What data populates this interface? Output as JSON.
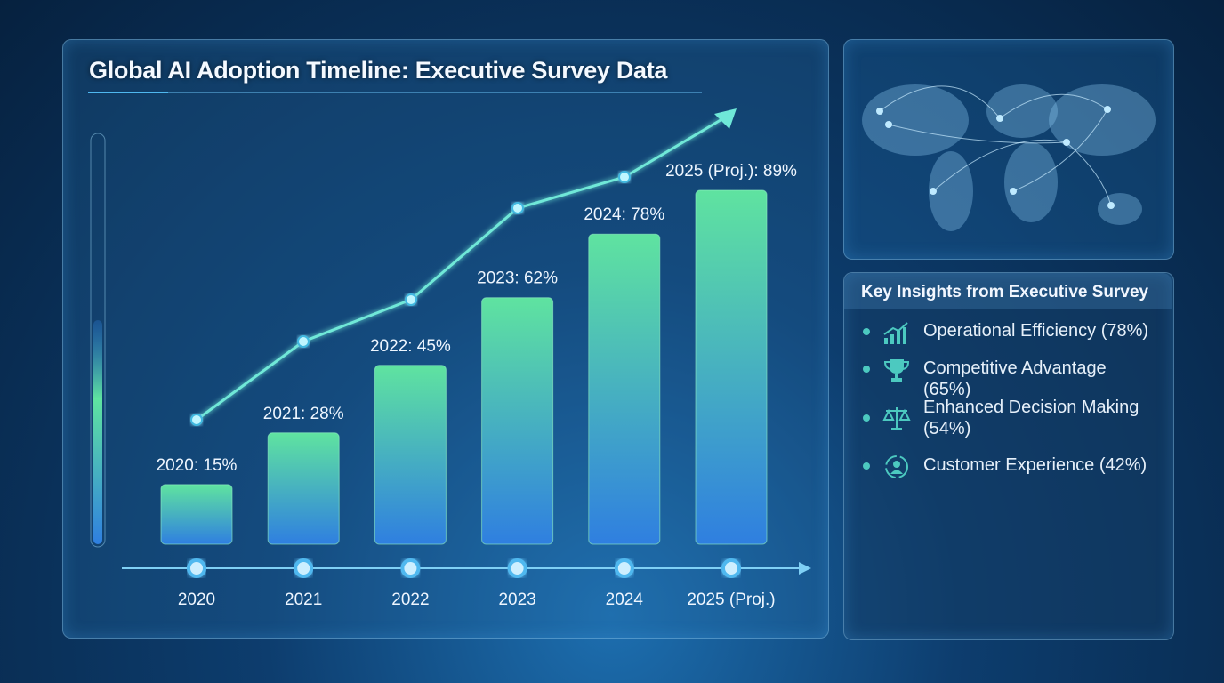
{
  "chart_data": {
    "type": "bar",
    "title": "Global AI Adoption Timeline: Executive Survey Data",
    "categories": [
      "2020",
      "2021",
      "2022",
      "2023",
      "2024",
      "2025 (Proj.)"
    ],
    "values": [
      15,
      28,
      45,
      62,
      78,
      89
    ],
    "data_labels": [
      "2020: 15%",
      "2021: 28%",
      "2022: 45%",
      "2023: 62%",
      "2024: 78%",
      "2025 (Proj.): 89%"
    ],
    "unit": "%",
    "ylim": [
      0,
      100
    ],
    "trend_line": true,
    "grid": false,
    "colors": {
      "bar_top": "#5fe3a0",
      "bar_bottom": "#2f7fe0",
      "trend": "#6fe8d8"
    }
  },
  "insights": {
    "title": "Key Insights from Executive Survey",
    "items": [
      {
        "icon": "growth-chart-icon",
        "label": "Operational Efficiency (78%)"
      },
      {
        "icon": "trophy-icon",
        "label": "Competitive Advantage (65%)"
      },
      {
        "icon": "balance-scale-icon",
        "label": "Enhanced Decision Making (54%)"
      },
      {
        "icon": "customer-cycle-icon",
        "label": "Customer Experience (42%)"
      }
    ]
  },
  "map": {
    "icon": "world-network-map-icon"
  }
}
